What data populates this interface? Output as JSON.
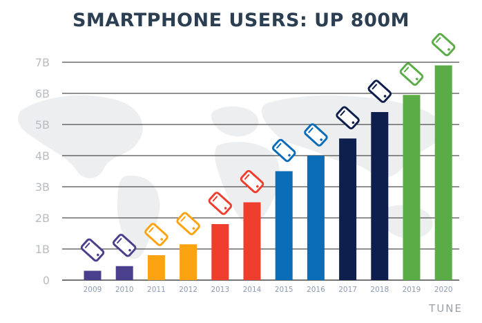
{
  "colors": {
    "background": "#ffffff",
    "title": "#2b3e52",
    "grid": "#222222",
    "tick_label": "#b7bcc2",
    "category_label": "#8c99b2",
    "world_map": "#eceeef",
    "purple": "#4a3f8c",
    "orange": "#fca311",
    "red": "#ef3e2e",
    "blue": "#0b6cb7",
    "navy": "#0e1f4d",
    "green": "#5aad46",
    "brand": "#9aa0a6"
  },
  "icons": {
    "bar_marker": "smartphone-icon",
    "background": "world-map"
  },
  "brand": "TUNE",
  "chart_data": {
    "type": "bar",
    "title": "SMARTPHONE USERS: UP 800M",
    "xlabel": "",
    "ylabel": "",
    "ylim": [
      0,
      7
    ],
    "yticks": [
      0,
      1,
      2,
      3,
      4,
      5,
      6,
      7
    ],
    "ytick_labels": [
      "0",
      "1B",
      "2B",
      "3B",
      "4B",
      "5B",
      "6B",
      "7B"
    ],
    "grid": true,
    "categories": [
      "2009",
      "2010",
      "2011",
      "2012",
      "2013",
      "2014",
      "2015",
      "2016",
      "2017",
      "2018",
      "2019",
      "2020"
    ],
    "values": [
      0.3,
      0.45,
      0.8,
      1.15,
      1.8,
      2.5,
      3.5,
      4.0,
      4.55,
      5.4,
      5.95,
      6.9
    ],
    "bar_colors": [
      "purple",
      "purple",
      "orange",
      "orange",
      "red",
      "red",
      "blue",
      "blue",
      "navy",
      "navy",
      "green",
      "green"
    ]
  }
}
